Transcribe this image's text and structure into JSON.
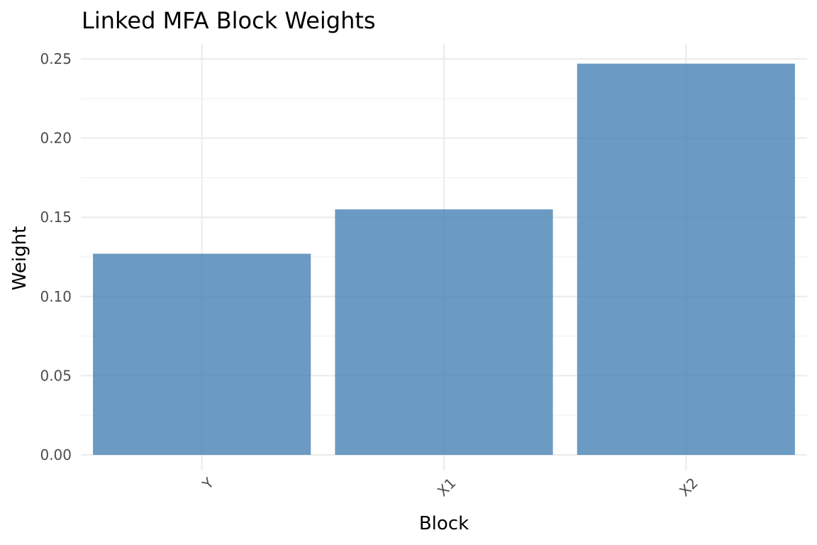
{
  "chart_data": {
    "type": "bar",
    "title": "Linked MFA Block Weights",
    "xlabel": "Block",
    "ylabel": "Weight",
    "categories": [
      "Y",
      "X1",
      "X2"
    ],
    "values": [
      0.127,
      0.155,
      0.247
    ],
    "ylim": [
      0,
      0.25
    ],
    "yticks": [
      0.0,
      0.05,
      0.1,
      0.15,
      0.2,
      0.25
    ],
    "ytick_labels": [
      "0.00",
      "0.05",
      "0.10",
      "0.15",
      "0.20",
      "0.25"
    ],
    "grid": true,
    "legend": "none",
    "colors": {
      "bar": "#4682b4"
    }
  }
}
